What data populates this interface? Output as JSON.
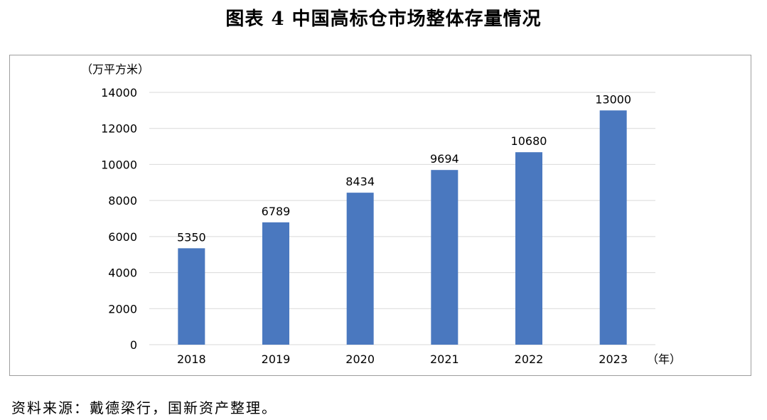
{
  "title": "图表 4  中国高标仓市场整体存量情况",
  "source": "资料来源：戴德梁行，国新资产整理。",
  "chart_data": {
    "type": "bar",
    "categories": [
      "2018",
      "2019",
      "2020",
      "2021",
      "2022",
      "2023"
    ],
    "values": [
      5350,
      6789,
      8434,
      9694,
      10680,
      13000
    ],
    "ylabel": "（万平方米）",
    "xlabel": "（年）",
    "ylim": [
      0,
      14000
    ],
    "yticks": [
      0,
      2000,
      4000,
      6000,
      8000,
      10000,
      12000,
      14000
    ],
    "grid": true,
    "bar_color": "#4a78bf",
    "grid_color": "#d9d9d9"
  }
}
